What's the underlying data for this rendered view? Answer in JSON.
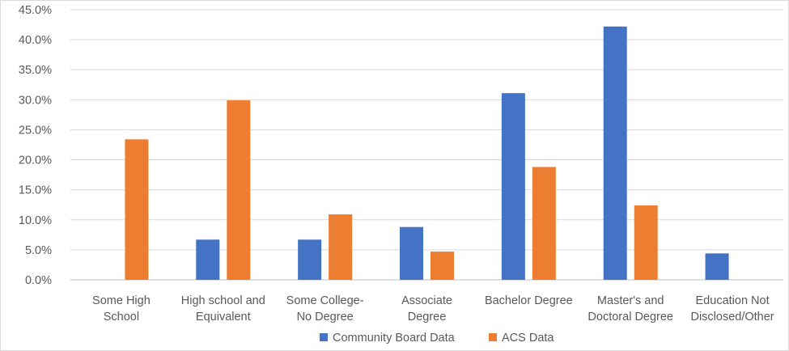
{
  "chart_data": {
    "type": "bar",
    "title": "",
    "xlabel": "",
    "ylabel": "",
    "ylim": [
      0,
      45
    ],
    "y_ticks": [
      "0.0%",
      "5.0%",
      "10.0%",
      "15.0%",
      "20.0%",
      "25.0%",
      "30.0%",
      "35.0%",
      "40.0%",
      "45.0%"
    ],
    "grid": true,
    "legend_position": "bottom",
    "categories": [
      [
        "Some High",
        "School"
      ],
      [
        "High school and",
        "Equivalent"
      ],
      [
        "Some College-",
        "No Degree"
      ],
      [
        "Associate",
        "Degree"
      ],
      [
        "Bachelor Degree"
      ],
      [
        "Master's and",
        "Doctoral Degree"
      ],
      [
        "Education Not",
        "Disclosed/Other"
      ]
    ],
    "series": [
      {
        "name": "Community Board Data",
        "color": "#4472c4",
        "values": [
          0,
          6.7,
          6.7,
          8.8,
          31.1,
          42.2,
          4.4
        ]
      },
      {
        "name": "ACS Data",
        "color": "#ed7d31",
        "values": [
          23.4,
          29.9,
          10.9,
          4.7,
          18.8,
          12.4,
          0
        ]
      }
    ]
  }
}
